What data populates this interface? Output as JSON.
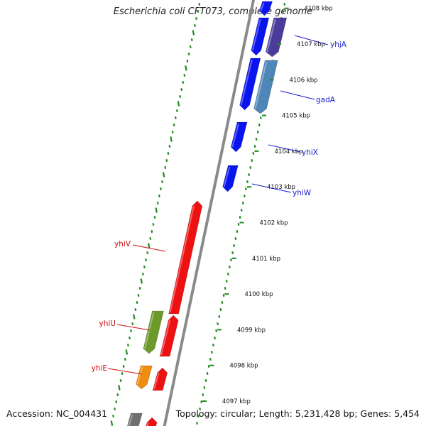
{
  "title": "Escherichia coli CFT073, complete genome",
  "accession": "Accession: NC_004431",
  "topology": "Topology: circular; Length: 5,231,428 bp; Genes: 5,454",
  "colors": {
    "backbone": "#8a8a8a",
    "tick": "#1f8a1f",
    "forward_gene": "#0a14ee",
    "reverse_gene": "#ee1111",
    "label_forward": "#1a1acc",
    "label_reverse": "#cc1111"
  },
  "scale_ticks": [
    "4097 kbp",
    "4098 kbp",
    "4099 kbp",
    "4100 kbp",
    "4101 kbp",
    "4102 kbp",
    "4103 kbp",
    "4104 kbp",
    "4105 kbp",
    "4106 kbp",
    "4107 kbp",
    "4108 kbp"
  ],
  "gene_labels": [
    {
      "id": "yhjA",
      "text": "yhjA",
      "strand": "forward"
    },
    {
      "id": "gadA",
      "text": "gadA",
      "strand": "forward"
    },
    {
      "id": "yhiX",
      "text": "yhiX",
      "strand": "forward"
    },
    {
      "id": "yhiW",
      "text": "yhiW",
      "strand": "forward"
    },
    {
      "id": "yhiV",
      "text": "yhiV",
      "strand": "reverse"
    },
    {
      "id": "yhiU",
      "text": "yhiU",
      "strand": "reverse"
    },
    {
      "id": "yhiE",
      "text": "yhiE",
      "strand": "reverse"
    }
  ],
  "features": [
    {
      "name": "forward-gene-1",
      "strand": "forward",
      "color": "#0a14ee"
    },
    {
      "name": "forward-gene-2",
      "strand": "forward",
      "color": "#0a14ee"
    },
    {
      "name": "forward-gene-3",
      "strand": "forward",
      "color": "#0a14ee"
    },
    {
      "name": "forward-gene-4",
      "strand": "forward",
      "color": "#0a14ee"
    },
    {
      "name": "forward-gene-5",
      "strand": "forward",
      "color": "#0a14ee"
    },
    {
      "name": "forward-gene-6",
      "strand": "forward",
      "color": "#4b3c9c"
    },
    {
      "name": "forward-gene-7",
      "strand": "forward",
      "color": "#4f86b8"
    },
    {
      "name": "reverse-gene-1",
      "strand": "reverse",
      "color": "#ee1111"
    },
    {
      "name": "reverse-gene-2",
      "strand": "reverse",
      "color": "#ee1111"
    },
    {
      "name": "reverse-gene-3",
      "strand": "reverse",
      "color": "#ee1111"
    },
    {
      "name": "reverse-gene-4",
      "strand": "reverse",
      "color": "#ee1111"
    },
    {
      "name": "reverse-gene-5",
      "strand": "reverse",
      "color": "#6b9a2b"
    },
    {
      "name": "reverse-gene-6",
      "strand": "reverse",
      "color": "#f08c10"
    },
    {
      "name": "reverse-gene-7",
      "strand": "reverse",
      "color": "#707070"
    }
  ]
}
